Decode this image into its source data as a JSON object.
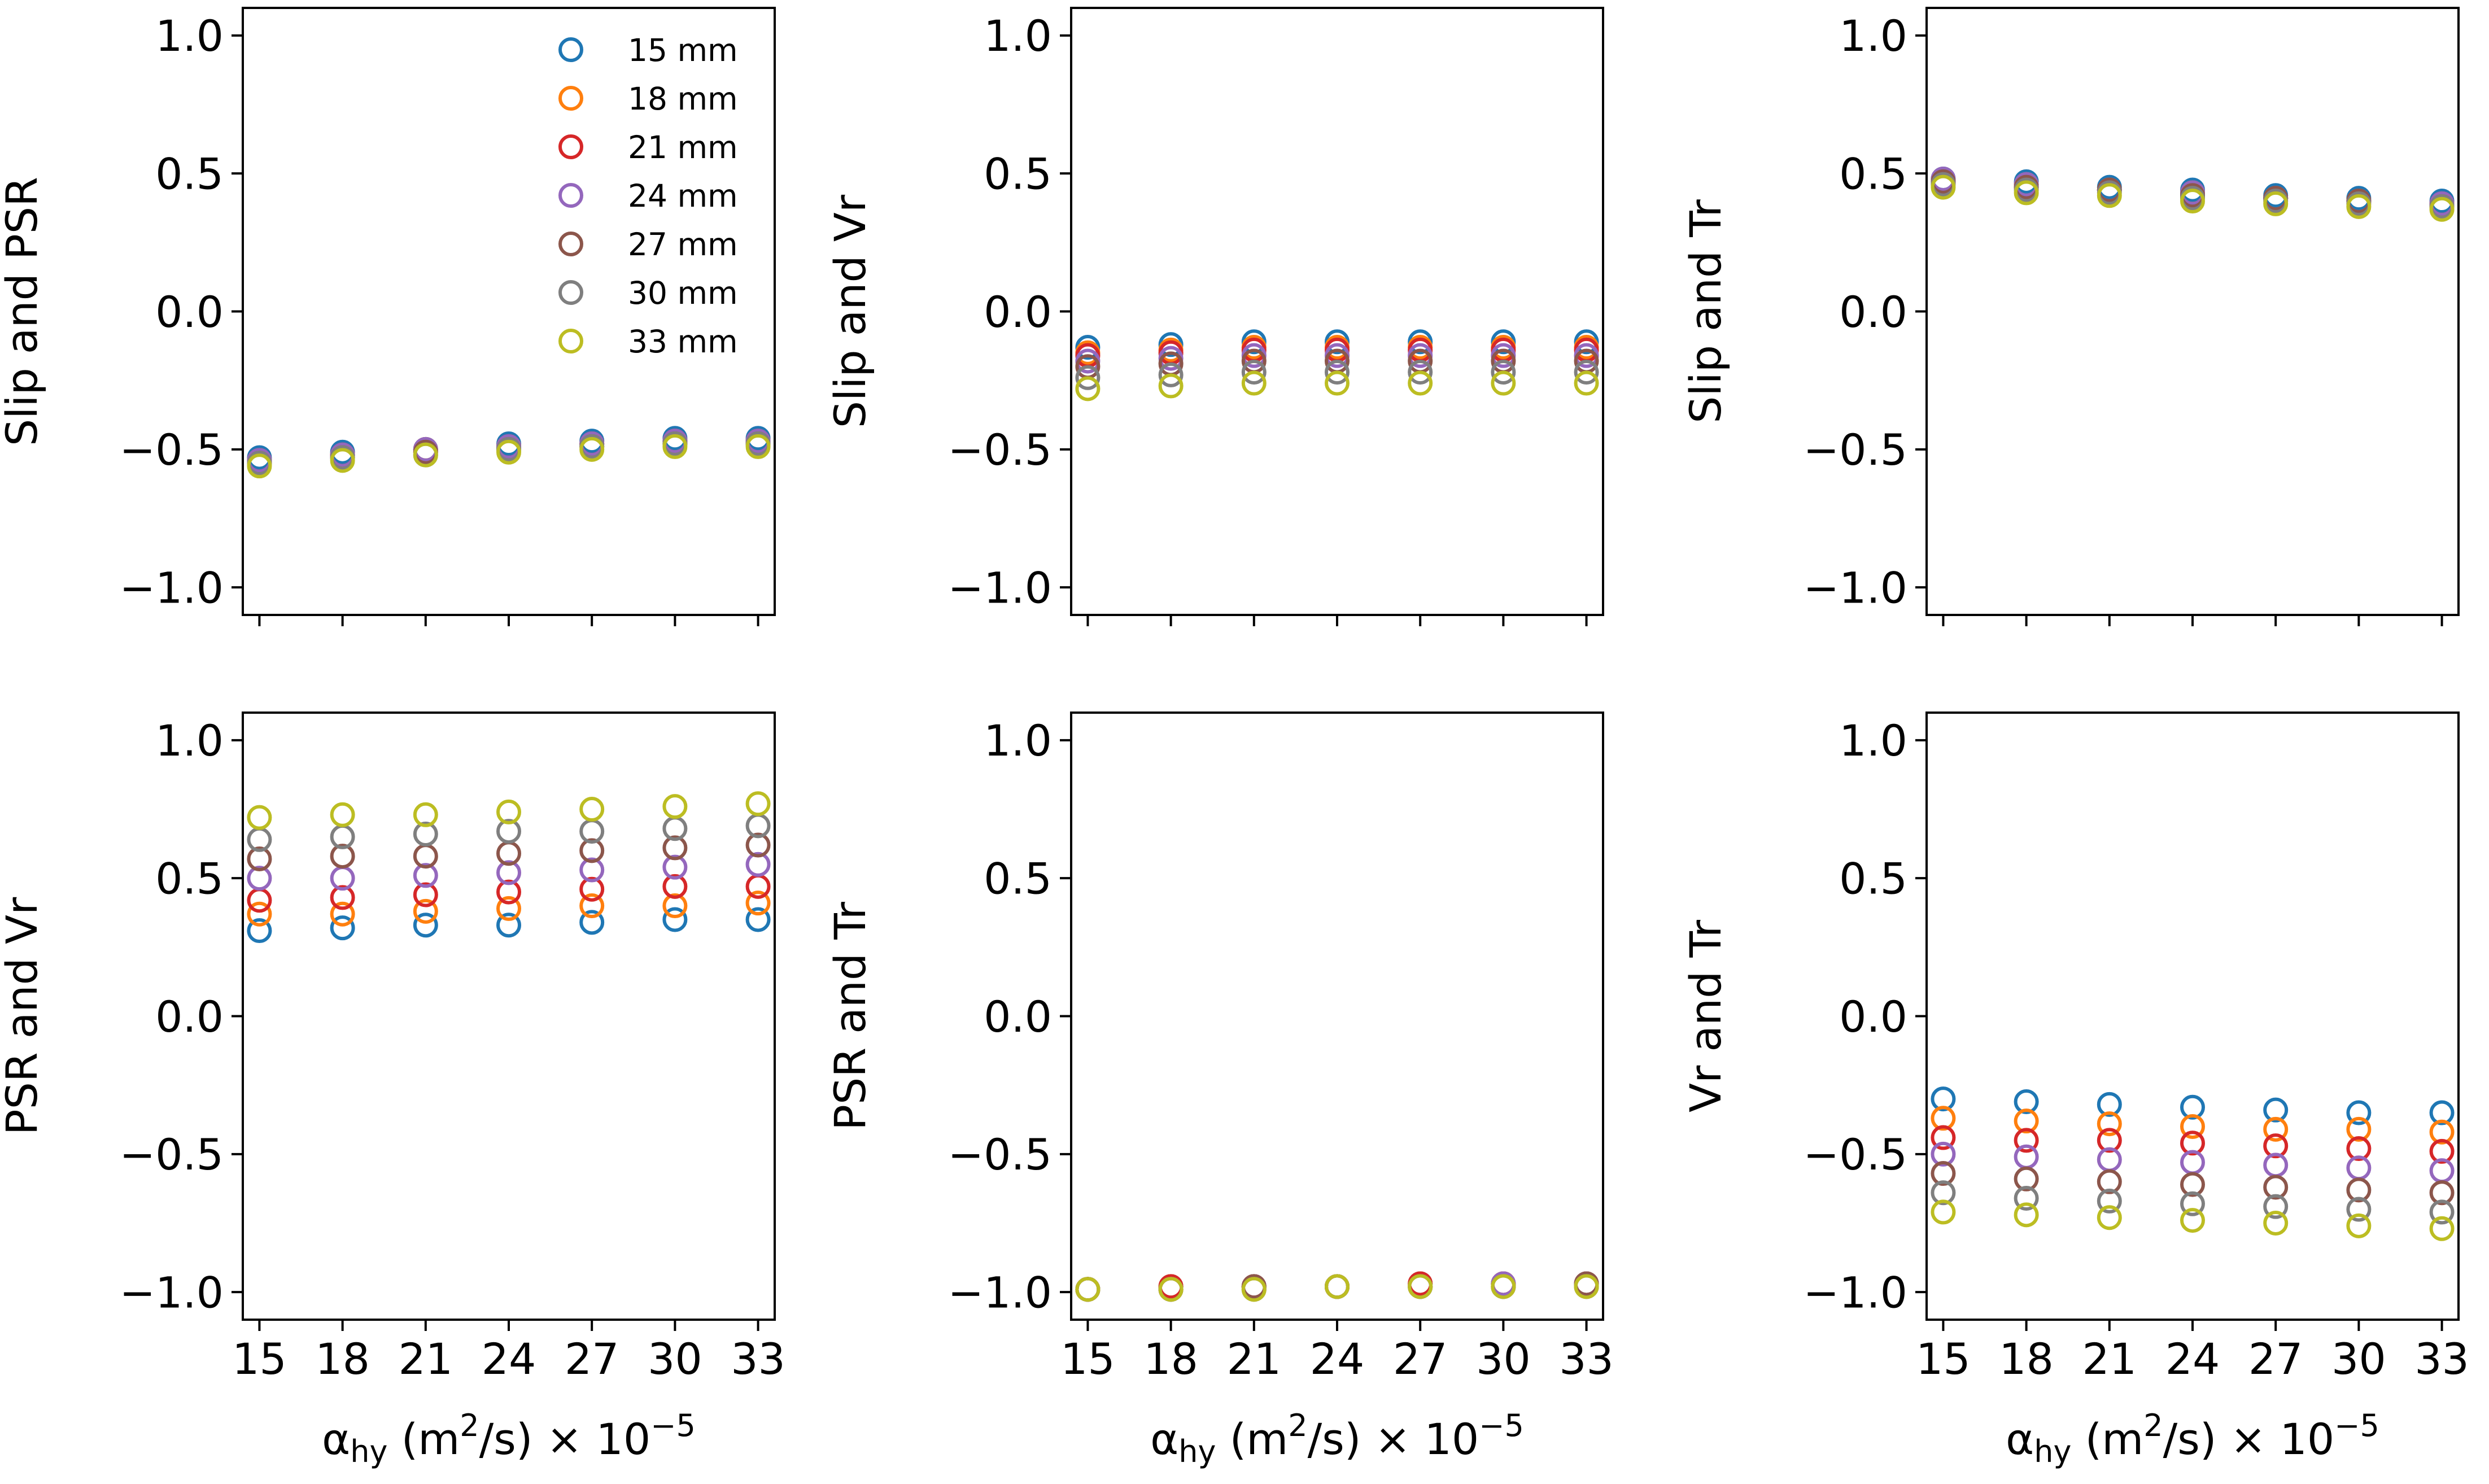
{
  "chart_data": {
    "type": "scatter",
    "series_names": [
      "15 mm",
      "18 mm",
      "21 mm",
      "24 mm",
      "27 mm",
      "30 mm",
      "33 mm"
    ],
    "colors": [
      "#1f77b4",
      "#ff7f0e",
      "#d62728",
      "#9467bd",
      "#8c564b",
      "#7f7f7f",
      "#bcbd22"
    ],
    "marker": "open-circle",
    "x": [
      15,
      18,
      21,
      24,
      27,
      30,
      33
    ],
    "xticks": [
      "15",
      "18",
      "21",
      "24",
      "27",
      "30",
      "33"
    ],
    "yticks": [
      "−1.0",
      "−0.5",
      "0.0",
      "0.5",
      "1.0"
    ],
    "ytick_values": [
      -1.0,
      -0.5,
      0.0,
      0.5,
      1.0
    ],
    "xlim": [
      14.4,
      33.6
    ],
    "ylim": [
      -1.1,
      1.1
    ],
    "grid": false,
    "legend_placement": "upper-right (first subplot)",
    "xlabel": {
      "alpha": "α",
      "sub": "hy",
      "units": "(m",
      "sup": "2",
      "units_end": "/s)",
      "times": "×",
      "base": "10",
      "exp": "−5"
    },
    "panels": [
      {
        "ylabel": "Slip and PSR",
        "has_legend": true,
        "show_xticklabels": false,
        "show_xlabel": false,
        "series": [
          [
            -0.53,
            -0.51,
            -0.5,
            -0.48,
            -0.47,
            -0.46,
            -0.46
          ],
          [
            -0.54,
            -0.52,
            -0.5,
            -0.49,
            -0.48,
            -0.47,
            -0.47
          ],
          [
            -0.54,
            -0.52,
            -0.51,
            -0.49,
            -0.48,
            -0.47,
            -0.47
          ],
          [
            -0.54,
            -0.52,
            -0.5,
            -0.49,
            -0.48,
            -0.47,
            -0.47
          ],
          [
            -0.55,
            -0.53,
            -0.51,
            -0.5,
            -0.49,
            -0.48,
            -0.48
          ],
          [
            -0.55,
            -0.53,
            -0.52,
            -0.5,
            -0.49,
            -0.48,
            -0.48
          ],
          [
            -0.56,
            -0.54,
            -0.52,
            -0.51,
            -0.5,
            -0.49,
            -0.49
          ]
        ]
      },
      {
        "ylabel": "Slip and Vr",
        "has_legend": false,
        "show_xticklabels": false,
        "show_xlabel": false,
        "series": [
          [
            -0.13,
            -0.12,
            -0.11,
            -0.11,
            -0.11,
            -0.11,
            -0.11
          ],
          [
            -0.15,
            -0.14,
            -0.13,
            -0.13,
            -0.13,
            -0.13,
            -0.13
          ],
          [
            -0.16,
            -0.15,
            -0.14,
            -0.14,
            -0.14,
            -0.14,
            -0.14
          ],
          [
            -0.18,
            -0.17,
            -0.16,
            -0.16,
            -0.16,
            -0.16,
            -0.16
          ],
          [
            -0.2,
            -0.19,
            -0.18,
            -0.18,
            -0.18,
            -0.18,
            -0.18
          ],
          [
            -0.24,
            -0.23,
            -0.22,
            -0.22,
            -0.22,
            -0.22,
            -0.22
          ],
          [
            -0.28,
            -0.27,
            -0.26,
            -0.26,
            -0.26,
            -0.26,
            -0.26
          ]
        ]
      },
      {
        "ylabel": "Slip and Tr",
        "has_legend": false,
        "show_xticklabels": false,
        "show_xlabel": false,
        "series": [
          [
            0.48,
            0.47,
            0.45,
            0.44,
            0.42,
            0.41,
            0.4
          ],
          [
            0.47,
            0.46,
            0.44,
            0.43,
            0.41,
            0.4,
            0.39
          ],
          [
            0.47,
            0.45,
            0.44,
            0.42,
            0.41,
            0.4,
            0.39
          ],
          [
            0.48,
            0.46,
            0.44,
            0.43,
            0.41,
            0.4,
            0.39
          ],
          [
            0.47,
            0.45,
            0.44,
            0.42,
            0.41,
            0.4,
            0.38
          ],
          [
            0.46,
            0.44,
            0.43,
            0.41,
            0.4,
            0.39,
            0.38
          ],
          [
            0.45,
            0.43,
            0.42,
            0.4,
            0.39,
            0.38,
            0.37
          ]
        ]
      },
      {
        "ylabel": "PSR and Vr",
        "has_legend": false,
        "show_xticklabels": true,
        "show_xlabel": true,
        "series": [
          [
            0.31,
            0.32,
            0.33,
            0.33,
            0.34,
            0.35,
            0.35
          ],
          [
            0.37,
            0.37,
            0.38,
            0.39,
            0.4,
            0.4,
            0.41
          ],
          [
            0.42,
            0.43,
            0.44,
            0.45,
            0.46,
            0.47,
            0.47
          ],
          [
            0.5,
            0.5,
            0.51,
            0.52,
            0.53,
            0.54,
            0.55
          ],
          [
            0.57,
            0.58,
            0.58,
            0.59,
            0.6,
            0.61,
            0.62
          ],
          [
            0.64,
            0.65,
            0.66,
            0.67,
            0.67,
            0.68,
            0.69
          ],
          [
            0.72,
            0.73,
            0.73,
            0.74,
            0.75,
            0.76,
            0.77
          ]
        ]
      },
      {
        "ylabel": "PSR and Tr",
        "has_legend": false,
        "show_xticklabels": true,
        "show_xlabel": true,
        "series": [
          [
            -0.99,
            -0.98,
            -0.98,
            -0.98,
            -0.97,
            -0.97,
            -0.97
          ],
          [
            -0.99,
            -0.98,
            -0.98,
            -0.98,
            -0.97,
            -0.97,
            -0.97
          ],
          [
            -0.99,
            -0.98,
            -0.98,
            -0.98,
            -0.97,
            -0.97,
            -0.97
          ],
          [
            -0.99,
            -0.99,
            -0.98,
            -0.98,
            -0.98,
            -0.97,
            -0.97
          ],
          [
            -0.99,
            -0.99,
            -0.98,
            -0.98,
            -0.98,
            -0.98,
            -0.97
          ],
          [
            -0.99,
            -0.99,
            -0.99,
            -0.98,
            -0.98,
            -0.98,
            -0.98
          ],
          [
            -0.99,
            -0.99,
            -0.99,
            -0.98,
            -0.98,
            -0.98,
            -0.98
          ]
        ]
      },
      {
        "ylabel": "Vr and Tr",
        "has_legend": false,
        "show_xticklabels": true,
        "show_xlabel": true,
        "series": [
          [
            -0.3,
            -0.31,
            -0.32,
            -0.33,
            -0.34,
            -0.35,
            -0.35
          ],
          [
            -0.37,
            -0.38,
            -0.39,
            -0.4,
            -0.41,
            -0.41,
            -0.42
          ],
          [
            -0.44,
            -0.45,
            -0.45,
            -0.46,
            -0.47,
            -0.48,
            -0.49
          ],
          [
            -0.5,
            -0.51,
            -0.52,
            -0.53,
            -0.54,
            -0.55,
            -0.56
          ],
          [
            -0.57,
            -0.59,
            -0.6,
            -0.61,
            -0.62,
            -0.63,
            -0.64
          ],
          [
            -0.64,
            -0.66,
            -0.67,
            -0.68,
            -0.69,
            -0.7,
            -0.71
          ],
          [
            -0.71,
            -0.72,
            -0.73,
            -0.74,
            -0.75,
            -0.76,
            -0.77
          ]
        ]
      }
    ]
  }
}
